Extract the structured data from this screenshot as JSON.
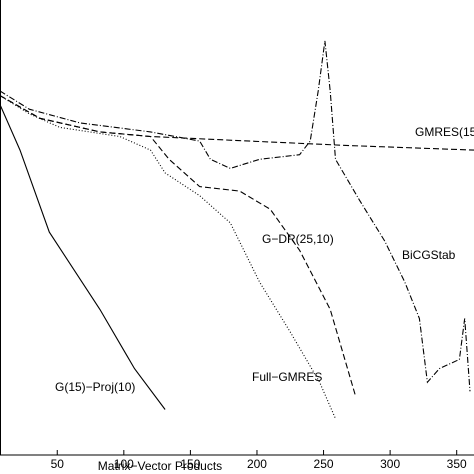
{
  "chart_data": {
    "type": "line",
    "x_label": "Matrix−Vector Products",
    "xlim": [
      7,
      363
    ],
    "xticks": [
      50,
      100,
      150,
      200,
      250,
      300,
      350
    ],
    "ylim": [
      0,
      100
    ],
    "series": [
      {
        "name": "G(15)−Proj(10)",
        "color": "#000000",
        "style": "solid",
        "x": [
          7,
          22,
          44,
          82,
          108,
          131
        ],
        "values": [
          77,
          67,
          49,
          32,
          19,
          10
        ]
      },
      {
        "name": "Full−GMRES",
        "color": "#000000",
        "style": "dotted",
        "x": [
          7,
          29,
          52,
          97,
          120,
          131,
          157,
          180,
          202,
          225,
          247,
          259
        ],
        "values": [
          79,
          75,
          72,
          70,
          67,
          62,
          57,
          51,
          38,
          27,
          16,
          8
        ]
      },
      {
        "name": "G−DR(25,10)",
        "color": "#000000",
        "style": "dashed",
        "x": [
          7,
          37,
          82,
          120,
          134,
          157,
          187,
          210,
          232,
          255,
          274
        ],
        "values": [
          79,
          74,
          71,
          70,
          65,
          59,
          58,
          54,
          45,
          32,
          13
        ]
      },
      {
        "name": "GMRES(15",
        "color": "#000000",
        "style": "dashed",
        "x": [
          7,
          37,
          82,
          120,
          195,
          270,
          363
        ],
        "values": [
          79,
          74,
          71,
          70,
          69,
          68,
          67
        ]
      },
      {
        "name": "BiCGStab",
        "color": "#000000",
        "style": "dashdot",
        "x": [
          7,
          29,
          67,
          120,
          157,
          165,
          180,
          202,
          232,
          240,
          246,
          251,
          255,
          259,
          277,
          296,
          311,
          322,
          328,
          337,
          352,
          356,
          360
        ],
        "values": [
          80,
          76,
          73,
          71,
          69,
          65,
          63,
          65,
          66,
          69,
          80,
          91,
          80,
          65,
          56,
          47,
          38,
          30,
          16,
          19,
          21,
          30,
          14
        ]
      }
    ]
  }
}
